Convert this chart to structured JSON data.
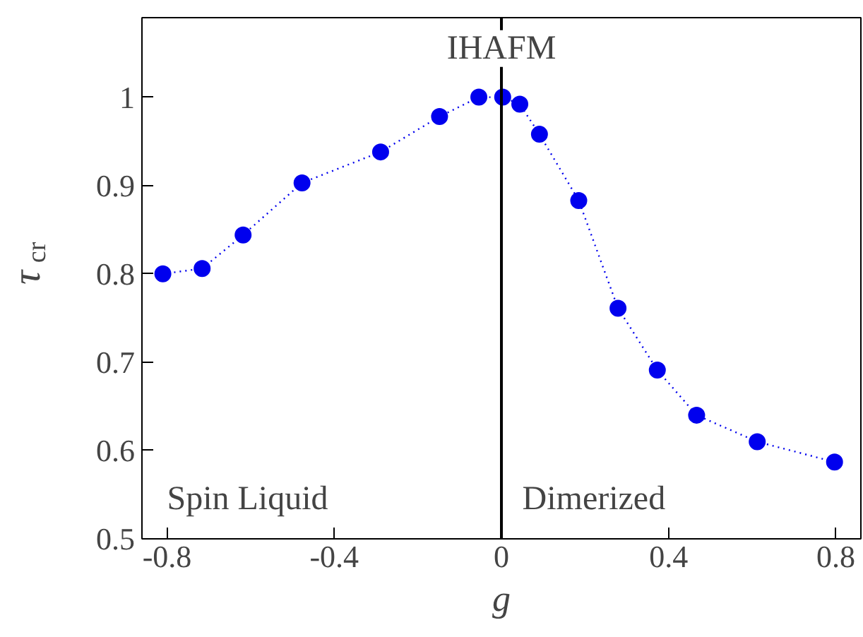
{
  "chart_data": {
    "type": "line",
    "xlabel": "g",
    "ylabel": "τ$_{cr}$",
    "x": [
      -0.81,
      -0.716,
      -0.618,
      -0.477,
      -0.289,
      -0.148,
      -0.054,
      0.003,
      0.044,
      0.091,
      0.185,
      0.279,
      0.373,
      0.467,
      0.612,
      0.797
    ],
    "series": [
      {
        "color": "#0000ee",
        "values": [
          0.8,
          0.806,
          0.844,
          0.903,
          0.938,
          0.978,
          1.0,
          1.0,
          0.992,
          0.958,
          0.883,
          0.761,
          0.691,
          0.64,
          0.61,
          0.587
        ]
      }
    ],
    "xlim": [
      -0.86,
      0.86
    ],
    "ylim": [
      0.5,
      1.09
    ],
    "xticks": [
      -0.8,
      -0.4,
      0,
      0.4,
      0.8
    ],
    "yticks": [
      0.5,
      0.6,
      0.7,
      0.8,
      0.9,
      1
    ],
    "ref_lines": [
      {
        "axis": "x",
        "value": 0,
        "color": "#000000"
      }
    ],
    "annotations": [
      "IHAFM",
      "Spin Liquid",
      "Dimerized"
    ],
    "marker": "circle",
    "line_style": "dotted",
    "grid": false
  }
}
